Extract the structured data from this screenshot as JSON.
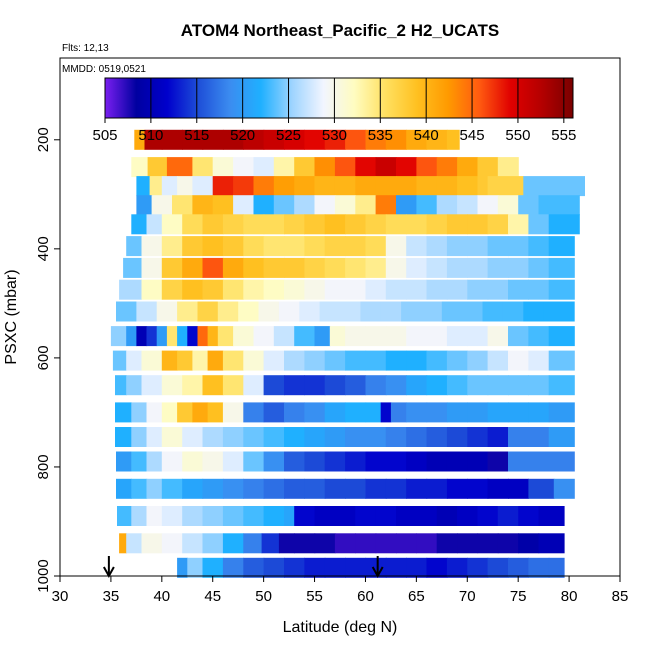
{
  "chart_data": {
    "type": "heatmap",
    "title": "ATOM4 Northeast_Pacific_2 H2_UCATS",
    "subtitle_flights": "Flts: 12,13",
    "subtitle_dates": "MMDD: 0519,0521",
    "xlabel": "Latitude (deg N)",
    "ylabel": "PSXC (mbar)",
    "xlim": [
      30,
      85
    ],
    "ylim": [
      1000,
      50
    ],
    "y_reversed": true,
    "x_ticks": [
      30,
      35,
      40,
      45,
      50,
      55,
      60,
      65,
      70,
      75,
      80,
      85
    ],
    "y_ticks": [
      200,
      400,
      600,
      800,
      1000
    ],
    "grid": false,
    "colorbar": {
      "orientation": "horizontal",
      "placement": "top",
      "range": [
        505,
        556
      ],
      "ticks": [
        505,
        510,
        515,
        520,
        525,
        530,
        535,
        540,
        545,
        550,
        555
      ],
      "colors": [
        "#7a1ff0",
        "#0000a0",
        "#0000cc",
        "#1e4fd8",
        "#3b8cf0",
        "#1fb0ff",
        "#9ed4ff",
        "#f2f5ff",
        "#fffcc0",
        "#ffe060",
        "#ffc020",
        "#ff9a00",
        "#ff5a10",
        "#e00000",
        "#b40000",
        "#7a0000"
      ]
    },
    "flight_markers_lat": [
      34.8,
      61.2
    ],
    "rows": [
      {
        "p": 200,
        "lat": [
          37.3,
          38.3,
          40,
          42,
          44,
          46,
          48,
          50,
          52,
          54,
          56,
          58,
          60,
          62,
          64,
          66,
          68,
          69.2
        ],
        "vals": [
          541,
          553,
          553,
          553,
          553,
          553,
          552,
          551,
          550,
          549,
          548,
          546,
          544,
          543,
          541,
          540,
          539
        ]
      },
      {
        "p": 250,
        "lat": [
          37,
          38.6,
          40.5,
          43,
          45,
          47,
          49,
          51,
          53,
          55,
          57,
          59,
          61,
          63,
          65,
          67,
          69,
          71,
          73,
          75
        ],
        "vals": [
          532,
          538,
          545,
          535,
          531,
          529,
          528,
          533,
          538,
          543,
          546,
          549,
          551,
          549,
          546,
          544,
          541,
          538,
          534
        ]
      },
      {
        "p": 285,
        "lat": [
          37.5,
          38.8,
          40,
          41.5,
          43,
          45,
          47,
          49,
          51,
          53,
          55,
          57,
          59,
          61,
          63,
          65,
          67,
          69,
          71,
          72,
          75.5,
          81.5
        ],
        "vals": [
          522,
          534,
          528,
          530,
          528,
          548,
          547,
          544,
          542,
          541,
          540,
          540,
          541,
          541,
          541,
          540,
          540,
          539,
          538,
          537,
          524
        ]
      },
      {
        "p": 320,
        "lat": [
          37.5,
          39,
          41,
          43,
          45,
          47,
          49,
          51,
          53,
          55,
          57,
          59,
          61,
          63,
          65,
          67,
          69,
          71,
          73,
          75,
          77,
          81
        ],
        "vals": [
          520,
          530,
          535,
          540,
          539,
          528,
          522,
          524,
          526,
          529,
          531,
          534,
          544,
          520,
          523,
          526,
          527,
          529,
          531,
          524,
          523
        ]
      },
      {
        "p": 355,
        "lat": [
          37,
          38.5,
          40,
          42,
          44,
          46,
          48,
          50,
          52,
          54,
          56,
          58,
          60,
          62,
          64,
          66,
          68,
          70,
          72,
          74,
          76,
          78,
          81
        ],
        "vals": [
          522,
          527,
          532,
          536,
          538,
          537,
          536,
          536,
          537,
          538,
          539,
          538,
          537,
          536,
          536,
          537,
          538,
          538,
          537,
          533,
          524,
          522
        ]
      },
      {
        "p": 395,
        "lat": [
          36.5,
          38,
          40,
          42,
          44,
          46,
          48,
          50,
          52,
          54,
          56,
          58,
          60,
          62,
          64,
          66,
          68,
          70,
          72,
          74,
          76,
          78,
          80.5
        ],
        "vals": [
          524,
          530,
          534,
          538,
          539,
          538,
          536,
          535,
          535,
          536,
          537,
          537,
          536,
          530,
          527,
          526,
          525,
          525,
          524,
          524,
          523,
          522
        ]
      },
      {
        "p": 435,
        "lat": [
          36.2,
          38,
          40,
          42,
          44,
          46,
          48,
          50,
          52,
          54,
          56,
          58,
          60,
          62,
          64,
          66,
          68,
          70,
          72,
          74,
          76,
          78,
          80.5
        ],
        "vals": [
          524,
          530,
          538,
          541,
          546,
          541,
          539,
          538,
          538,
          537,
          536,
          535,
          534,
          530,
          528,
          527,
          526,
          526,
          525,
          525,
          524,
          523
        ]
      },
      {
        "p": 475,
        "lat": [
          35.8,
          38,
          40,
          42,
          44,
          46,
          48,
          50,
          52,
          54,
          56,
          58,
          60,
          62,
          64,
          66,
          68,
          70,
          72,
          74,
          76,
          78,
          80.5
        ],
        "vals": [
          526,
          532,
          537,
          539,
          538,
          535,
          533,
          532,
          531,
          530,
          529,
          529,
          528,
          527,
          527,
          526,
          526,
          525,
          525,
          524,
          524,
          523
        ]
      },
      {
        "p": 515,
        "lat": [
          35.5,
          37.5,
          39.5,
          41.5,
          43.5,
          45.5,
          47.5,
          49.5,
          51.5,
          53.5,
          55.5,
          57.5,
          59.5,
          61.5,
          63.5,
          65.5,
          67.5,
          69.5,
          71.5,
          73.5,
          75.5,
          77.5,
          80.5
        ],
        "vals": [
          524,
          527,
          530,
          534,
          537,
          534,
          532,
          530,
          529,
          528,
          527,
          527,
          526,
          526,
          525,
          525,
          524,
          524,
          523,
          523,
          522,
          522
        ]
      },
      {
        "p": 560,
        "lat": [
          35,
          36.5,
          37.5,
          38.5,
          39.5,
          40.5,
          41.5,
          42.5,
          43.5,
          44.5,
          45.5,
          47,
          49,
          51,
          53,
          55,
          56.5,
          58,
          60,
          62,
          64,
          66,
          68,
          70,
          72,
          74,
          76,
          78,
          80.5
        ],
        "vals": [
          525,
          520,
          510,
          514,
          520,
          535,
          522,
          512,
          545,
          540,
          535,
          531,
          529,
          527,
          523,
          520,
          531,
          530,
          530,
          530,
          529,
          529,
          528,
          528,
          530,
          524,
          523,
          522
        ]
      },
      {
        "p": 605,
        "lat": [
          35.2,
          36.5,
          38,
          40,
          41.5,
          43,
          44.5,
          46,
          48,
          50,
          52,
          54,
          56,
          58,
          60,
          62,
          64,
          66,
          68,
          70,
          72,
          74,
          76,
          78,
          80.5
        ],
        "vals": [
          524,
          528,
          531,
          540,
          538,
          533,
          541,
          535,
          531,
          528,
          526,
          525,
          524,
          523,
          523,
          522,
          522,
          523,
          524,
          525,
          527,
          529,
          528,
          524
        ]
      },
      {
        "p": 650,
        "lat": [
          35.4,
          36.5,
          38,
          40,
          42,
          44,
          46,
          48,
          50,
          52,
          54,
          56,
          58,
          60,
          62,
          64,
          66,
          68,
          70,
          72,
          74,
          76,
          78,
          80.5
        ],
        "vals": [
          523,
          525,
          528,
          531,
          533,
          539,
          535,
          528,
          515,
          514,
          514,
          515,
          516,
          518,
          519,
          521,
          522,
          523,
          524,
          524,
          524,
          524,
          523
        ]
      },
      {
        "p": 700,
        "lat": [
          35.4,
          37,
          38.5,
          40,
          41.5,
          43,
          44.5,
          46,
          48,
          50,
          52,
          54,
          56,
          58,
          60,
          61.5,
          62.5,
          64,
          66,
          68,
          70,
          72,
          74,
          76,
          78,
          80.5
        ],
        "vals": [
          522,
          525,
          529,
          532,
          538,
          541,
          539,
          530,
          518,
          516,
          518,
          519,
          521,
          522,
          522,
          512,
          518,
          519,
          519,
          520,
          520,
          521,
          521,
          521,
          520
        ]
      },
      {
        "p": 745,
        "lat": [
          35.4,
          37,
          38.5,
          40,
          42,
          44,
          46,
          48,
          50,
          52,
          54,
          56,
          58,
          60,
          62,
          64,
          66,
          68,
          70,
          72,
          74,
          78,
          80.5
        ],
        "vals": [
          522,
          525,
          528,
          531,
          528,
          526,
          525,
          524,
          523,
          522,
          521,
          520,
          519,
          519,
          518,
          517,
          516,
          515,
          514,
          513,
          518,
          520
        ]
      },
      {
        "p": 790,
        "lat": [
          35.5,
          37,
          38.5,
          40,
          42,
          44,
          46,
          48,
          50,
          52,
          54,
          56,
          58,
          60,
          62,
          64,
          66,
          68,
          70,
          72,
          74,
          76,
          78,
          80.5
        ],
        "vals": [
          520,
          523,
          526,
          529,
          531,
          530,
          528,
          524,
          519,
          516,
          515,
          514,
          513,
          512,
          512,
          511,
          510,
          510,
          510,
          508,
          518,
          518,
          518
        ]
      },
      {
        "p": 840,
        "lat": [
          35.5,
          37,
          38.5,
          40,
          42,
          44,
          46,
          48,
          50,
          52,
          54,
          56,
          58,
          60,
          62,
          64,
          66,
          68,
          70,
          72,
          74,
          76,
          78.5,
          80.5
        ],
        "vals": [
          521,
          523,
          525,
          523,
          521,
          520,
          519,
          518,
          517,
          516,
          516,
          515,
          515,
          514,
          514,
          513,
          513,
          512,
          512,
          511,
          511,
          515,
          519
        ]
      },
      {
        "p": 890,
        "lat": [
          35.6,
          37,
          38.5,
          40,
          42,
          44,
          46,
          48,
          50,
          52,
          53,
          55,
          57,
          59,
          61,
          63,
          65,
          67,
          69,
          71,
          73,
          75,
          77,
          79.5
        ],
        "vals": [
          523,
          526,
          529,
          528,
          526,
          525,
          524,
          523,
          522,
          521,
          512,
          511,
          511,
          512,
          512,
          511,
          511,
          510,
          511,
          512,
          513,
          512,
          511
        ]
      },
      {
        "p": 940,
        "lat": [
          35.8,
          36.5,
          38,
          40,
          42,
          44,
          46,
          48,
          49.8,
          51.5,
          53,
          55,
          57,
          59,
          61,
          63,
          65,
          67,
          69,
          71,
          73,
          75,
          77,
          79.5
        ],
        "vals": [
          541,
          527,
          530,
          529,
          527,
          525,
          522,
          518,
          514,
          508,
          508,
          508,
          507,
          507,
          507,
          507,
          507,
          508,
          508,
          508,
          508,
          509,
          510
        ]
      },
      {
        "p": 985,
        "lat": [
          41.5,
          42.5,
          44,
          46,
          48,
          50,
          52,
          54,
          56,
          58,
          60,
          62,
          64,
          66,
          68,
          70,
          72,
          74,
          76,
          78,
          79.5
        ],
        "vals": [
          520,
          525,
          522,
          518,
          516,
          515,
          514,
          513,
          513,
          513,
          513,
          513,
          513,
          512,
          513,
          514,
          515,
          516,
          517,
          517
        ]
      }
    ]
  }
}
